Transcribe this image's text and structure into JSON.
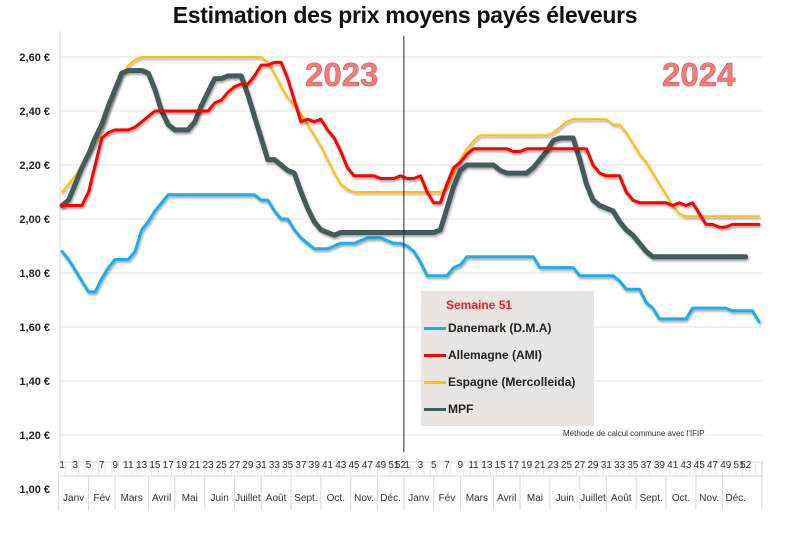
{
  "chart_data": {
    "type": "line",
    "title": "Estimation des prix moyens payés éleveurs",
    "xlabel": "",
    "ylabel": "",
    "ylim": [
      1.0,
      2.7
    ],
    "yticks": [
      "1,00 €",
      "1,20 €",
      "1,40 €",
      "1,60 €",
      "1,80 €",
      "2,00 €",
      "2,20 €",
      "2,40 €",
      "2,60 €"
    ],
    "ytick_values": [
      1.0,
      1.2,
      1.4,
      1.6,
      1.8,
      2.0,
      2.2,
      2.4,
      2.6
    ],
    "grid": true,
    "years": [
      "2023",
      "2024"
    ],
    "week_tick_labels": [
      "1",
      "3",
      "5",
      "7",
      "9",
      "11",
      "13",
      "15",
      "17",
      "19",
      "21",
      "23",
      "25",
      "27",
      "29",
      "31",
      "33",
      "35",
      "37",
      "39",
      "41",
      "43",
      "45",
      "47",
      "49",
      "51",
      "52"
    ],
    "months": [
      "Janv",
      "Fév",
      "Mars",
      "Avril",
      "Mai",
      "Juin",
      "Juillet",
      "Août",
      "Sept.",
      "Oct.",
      "Nov.",
      "Déc."
    ],
    "month_week_bounds": [
      0,
      4.5,
      8.5,
      13.5,
      17.5,
      22,
      26.5,
      30.5,
      35,
      39.5,
      44,
      48,
      52
    ],
    "legend_title": "Semaine 51",
    "legend_position": "center-right",
    "annotation": "Méthode de calcul commune avec l'IFIP",
    "series": [
      {
        "name": "Danemark (D.M.A)",
        "color": "#1aaee8",
        "values": [
          1.88,
          1.85,
          1.81,
          1.77,
          1.73,
          1.73,
          1.78,
          1.82,
          1.85,
          1.85,
          1.85,
          1.88,
          1.96,
          1.99,
          2.03,
          2.06,
          2.09,
          2.09,
          2.09,
          2.09,
          2.09,
          2.09,
          2.09,
          2.09,
          2.09,
          2.09,
          2.09,
          2.09,
          2.09,
          2.09,
          2.07,
          2.07,
          2.03,
          2.0,
          2.0,
          1.96,
          1.93,
          1.91,
          1.89,
          1.89,
          1.89,
          1.9,
          1.91,
          1.91,
          1.91,
          1.92,
          1.93,
          1.93,
          1.93,
          1.92,
          1.91,
          1.91,
          1.9,
          1.88,
          1.84,
          1.79,
          1.79,
          1.79,
          1.79,
          1.82,
          1.83,
          1.86,
          1.86,
          1.86,
          1.86,
          1.86,
          1.86,
          1.86,
          1.86,
          1.86,
          1.86,
          1.86,
          1.82,
          1.82,
          1.82,
          1.82,
          1.82,
          1.82,
          1.79,
          1.79,
          1.79,
          1.79,
          1.79,
          1.79,
          1.77,
          1.74,
          1.74,
          1.74,
          1.69,
          1.67,
          1.63,
          1.63,
          1.63,
          1.63,
          1.63,
          1.67,
          1.67,
          1.67,
          1.67,
          1.67,
          1.67,
          1.66,
          1.66,
          1.66,
          1.66,
          1.62
        ]
      },
      {
        "name": "Allemagne (AMI)",
        "color": "#ff0000",
        "values": [
          2.05,
          2.05,
          2.05,
          2.05,
          2.1,
          2.2,
          2.3,
          2.32,
          2.33,
          2.33,
          2.33,
          2.34,
          2.36,
          2.38,
          2.4,
          2.4,
          2.4,
          2.4,
          2.4,
          2.4,
          2.4,
          2.4,
          2.4,
          2.43,
          2.44,
          2.47,
          2.49,
          2.5,
          2.5,
          2.53,
          2.57,
          2.57,
          2.58,
          2.58,
          2.52,
          2.44,
          2.36,
          2.37,
          2.36,
          2.37,
          2.33,
          2.3,
          2.25,
          2.19,
          2.16,
          2.16,
          2.16,
          2.16,
          2.15,
          2.15,
          2.15,
          2.16,
          2.15,
          2.15,
          2.16,
          2.1,
          2.06,
          2.06,
          2.13,
          2.19,
          2.21,
          2.24,
          2.26,
          2.26,
          2.26,
          2.26,
          2.26,
          2.26,
          2.25,
          2.25,
          2.26,
          2.26,
          2.26,
          2.26,
          2.26,
          2.26,
          2.26,
          2.26,
          2.26,
          2.26,
          2.2,
          2.17,
          2.16,
          2.16,
          2.16,
          2.1,
          2.07,
          2.06,
          2.06,
          2.06,
          2.06,
          2.06,
          2.05,
          2.06,
          2.05,
          2.06,
          2.02,
          1.98,
          1.98,
          1.97,
          1.97,
          1.98,
          1.98,
          1.98,
          1.98,
          1.98
        ]
      },
      {
        "name": "Espagne (Mercolleida)",
        "color": "#ffc000",
        "values": [
          2.1,
          2.13,
          2.16,
          2.2,
          2.24,
          2.28,
          2.33,
          2.4,
          2.47,
          2.53,
          2.57,
          2.59,
          2.6,
          2.6,
          2.6,
          2.6,
          2.6,
          2.6,
          2.6,
          2.6,
          2.6,
          2.6,
          2.6,
          2.6,
          2.6,
          2.6,
          2.6,
          2.6,
          2.6,
          2.6,
          2.6,
          2.58,
          2.54,
          2.49,
          2.45,
          2.42,
          2.39,
          2.35,
          2.31,
          2.27,
          2.22,
          2.17,
          2.13,
          2.11,
          2.1,
          2.1,
          2.1,
          2.1,
          2.1,
          2.1,
          2.1,
          2.1,
          2.1,
          2.1,
          2.1,
          2.1,
          2.1,
          2.1,
          2.12,
          2.17,
          2.22,
          2.26,
          2.29,
          2.31,
          2.31,
          2.31,
          2.31,
          2.31,
          2.31,
          2.31,
          2.31,
          2.31,
          2.31,
          2.31,
          2.32,
          2.34,
          2.36,
          2.37,
          2.37,
          2.37,
          2.37,
          2.37,
          2.37,
          2.35,
          2.35,
          2.32,
          2.28,
          2.24,
          2.21,
          2.17,
          2.13,
          2.09,
          2.05,
          2.02,
          2.01,
          2.01,
          2.01,
          2.01,
          2.01,
          2.01,
          2.01,
          2.01,
          2.01,
          2.01,
          2.01,
          2.01
        ]
      },
      {
        "name": "MPF",
        "color": "#445a5a",
        "values": [
          2.05,
          2.07,
          2.13,
          2.19,
          2.24,
          2.3,
          2.35,
          2.42,
          2.48,
          2.54,
          2.55,
          2.55,
          2.55,
          2.54,
          2.48,
          2.4,
          2.35,
          2.33,
          2.33,
          2.33,
          2.36,
          2.42,
          2.47,
          2.52,
          2.52,
          2.53,
          2.53,
          2.53,
          2.46,
          2.38,
          2.3,
          2.22,
          2.22,
          2.2,
          2.18,
          2.17,
          2.1,
          2.04,
          1.99,
          1.96,
          1.95,
          1.94,
          1.95,
          1.95,
          1.95,
          1.95,
          1.95,
          1.95,
          1.95,
          1.95,
          1.95,
          1.95,
          1.95,
          1.95,
          1.95,
          1.95,
          1.95,
          1.96,
          2.04,
          2.12,
          2.18,
          2.2,
          2.2,
          2.2,
          2.2,
          2.2,
          2.18,
          2.17,
          2.17,
          2.17,
          2.17,
          2.19,
          2.22,
          2.25,
          2.29,
          2.3,
          2.3,
          2.3,
          2.22,
          2.13,
          2.07,
          2.05,
          2.04,
          2.03,
          1.99,
          1.96,
          1.94,
          1.91,
          1.88,
          1.86,
          1.86,
          1.86,
          1.86,
          1.86,
          1.86,
          1.86,
          1.86,
          1.86,
          1.86,
          1.86,
          1.86,
          1.86,
          1.86,
          1.86
        ]
      }
    ]
  }
}
